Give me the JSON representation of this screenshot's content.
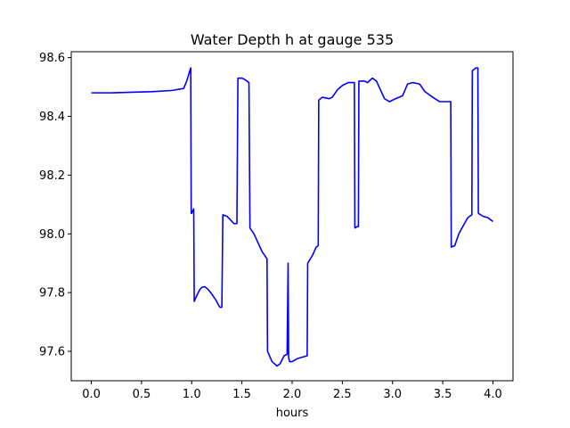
{
  "chart_data": {
    "type": "line",
    "title": "Water Depth h at gauge 535",
    "xlabel": "hours",
    "ylabel": "",
    "xlim": [
      -0.2,
      4.2
    ],
    "ylim": [
      97.5,
      98.62
    ],
    "xticks": [
      0.0,
      0.5,
      1.0,
      1.5,
      2.0,
      2.5,
      3.0,
      3.5,
      4.0
    ],
    "xtick_labels": [
      "0.0",
      "0.5",
      "1.0",
      "1.5",
      "2.0",
      "2.5",
      "3.0",
      "3.5",
      "4.0"
    ],
    "yticks": [
      97.6,
      97.8,
      98.0,
      98.2,
      98.4,
      98.6
    ],
    "ytick_labels": [
      "97.6",
      "97.8",
      "98.0",
      "98.2",
      "98.4",
      "98.6"
    ],
    "grid": false,
    "line_color": "#0000ff",
    "series": [
      {
        "x": [
          0.0,
          0.2,
          0.4,
          0.6,
          0.8,
          0.92,
          0.95,
          0.99,
          0.995,
          1.0,
          1.02,
          1.025,
          1.05,
          1.08,
          1.1,
          1.13,
          1.16,
          1.2,
          1.24,
          1.28,
          1.3,
          1.31,
          1.35,
          1.38,
          1.42,
          1.45,
          1.46,
          1.5,
          1.53,
          1.57,
          1.58,
          1.62,
          1.66,
          1.7,
          1.75,
          1.755,
          1.8,
          1.85,
          1.88,
          1.92,
          1.95,
          1.96,
          1.965,
          1.975,
          2.0,
          2.05,
          2.15,
          2.155,
          2.2,
          2.24,
          2.26,
          2.265,
          2.3,
          2.37,
          2.4,
          2.45,
          2.5,
          2.56,
          2.62,
          2.625,
          2.65,
          2.66,
          2.665,
          2.72,
          2.75,
          2.8,
          2.84,
          2.88,
          2.92,
          2.97,
          3.03,
          3.1,
          3.15,
          3.2,
          3.27,
          3.32,
          3.36,
          3.4,
          3.47,
          3.55,
          3.58,
          3.585,
          3.62,
          3.66,
          3.7,
          3.75,
          3.79,
          3.795,
          3.83,
          3.85,
          3.855,
          3.9,
          3.95,
          4.0
        ],
        "y": [
          98.48,
          98.48,
          98.482,
          98.484,
          98.488,
          98.495,
          98.52,
          98.565,
          98.07,
          98.07,
          98.085,
          97.77,
          97.79,
          97.81,
          97.818,
          97.82,
          97.812,
          97.795,
          97.775,
          97.75,
          97.75,
          98.065,
          98.06,
          98.05,
          98.035,
          98.035,
          98.53,
          98.53,
          98.525,
          98.515,
          98.02,
          98.0,
          97.97,
          97.94,
          97.915,
          97.6,
          97.565,
          97.55,
          97.558,
          97.585,
          97.59,
          97.9,
          97.58,
          97.565,
          97.565,
          97.575,
          97.585,
          97.9,
          97.925,
          97.955,
          97.96,
          98.455,
          98.465,
          98.46,
          98.465,
          98.49,
          98.505,
          98.515,
          98.515,
          98.02,
          98.025,
          98.025,
          98.52,
          98.52,
          98.515,
          98.53,
          98.52,
          98.49,
          98.46,
          98.45,
          98.46,
          98.47,
          98.51,
          98.515,
          98.51,
          98.485,
          98.475,
          98.465,
          98.45,
          98.45,
          98.45,
          97.955,
          97.96,
          98.0,
          98.025,
          98.055,
          98.065,
          98.555,
          98.565,
          98.565,
          98.07,
          98.06,
          98.055,
          98.042
        ]
      }
    ]
  }
}
